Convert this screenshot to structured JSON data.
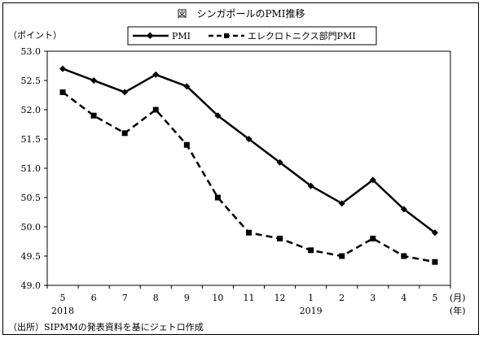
{
  "chart_data": {
    "type": "line",
    "title": "図　シンガポールのPMI推移",
    "ylabel": "（ポイント）",
    "ylim": [
      49.0,
      53.0
    ],
    "yticks": [
      "53.0",
      "52.5",
      "52.0",
      "51.5",
      "51.0",
      "50.5",
      "50.0",
      "49.5",
      "49.0"
    ],
    "categories": [
      "5",
      "6",
      "7",
      "8",
      "9",
      "10",
      "11",
      "12",
      "1",
      "2",
      "3",
      "4",
      "5"
    ],
    "year_labels": [
      {
        "label": "2018",
        "index": 0
      },
      {
        "label": "2019",
        "index": 8
      }
    ],
    "x_unit_month": "(月)",
    "x_unit_year": "(年)",
    "legend_position": "top",
    "grid": false,
    "series": [
      {
        "name": "PMI",
        "style": "solid",
        "marker": "diamond",
        "values": [
          52.7,
          52.5,
          52.3,
          52.6,
          52.4,
          51.9,
          51.5,
          51.1,
          50.7,
          50.4,
          50.8,
          50.3,
          49.9
        ]
      },
      {
        "name": "エレクロトニクス部門PMI",
        "style": "dashed",
        "marker": "square",
        "values": [
          52.3,
          51.9,
          51.6,
          52.0,
          51.4,
          50.5,
          49.9,
          49.8,
          49.6,
          49.5,
          49.8,
          49.5,
          49.4
        ]
      }
    ]
  },
  "source_note": "（出所）SIPMMの発表資料を基にジェトロ作成"
}
